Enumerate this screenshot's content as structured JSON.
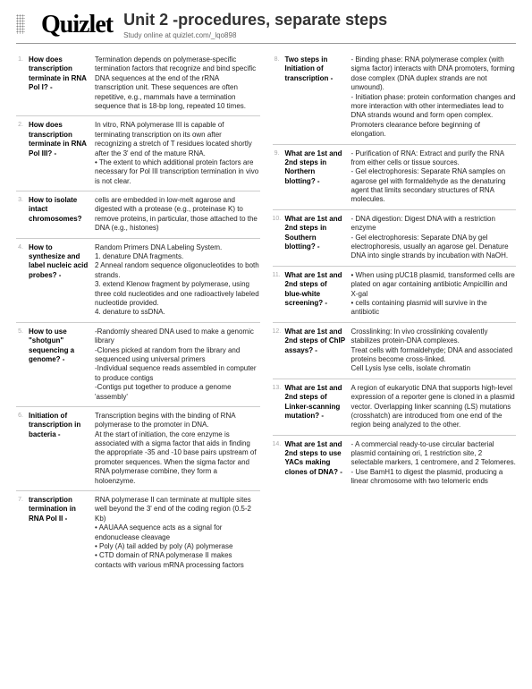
{
  "logo": "Quizlet",
  "title": "Unit 2 -procedures, separate steps",
  "subtitle": "Study online at quizlet.com/_lqo898",
  "left": [
    {
      "n": "1.",
      "term": "How does transcription terminate in RNA Pol I?\n-",
      "def": "Termination depends on polymerase-specific termination factors that recognize and bind specific DNA sequences at the end of the rRNA transcription unit. These sequences are often repetitive, e.g., mammals have a termination sequence that is 18-bp long, repeated 10 times."
    },
    {
      "n": "2.",
      "term": "How does transcription terminate in RNA Pol III?\n-",
      "def": "In vitro, RNA polymerase III is capable of terminating transcription on its own after recognizing a stretch of T residues located shortly after the 3' end of the mature RNA.\n• The extent to which additional protein factors are necessary for Pol III transcription termination in vivo is not clear."
    },
    {
      "n": "3.",
      "term": "How to isolate intact chromosomes?",
      "def": "cells are embedded in low-melt agarose and digested with a protease (e.g., proteinase K) to remove proteins, in particular, those attached to the DNA (e.g., histones)"
    },
    {
      "n": "4.",
      "term": "How to synthesize and label nucleic acid probes?\n-",
      "def": "Random Primers DNA Labeling System.\n1. denature DNA fragments.\n2 Anneal random sequence oligonucleotides to both strands.\n3. extend Klenow fragment by polymerase, using three cold nucleotides and one radioactively labeled nucleotide provided.\n4. denature to ssDNA."
    },
    {
      "n": "5.",
      "term": "How to use \"shotgun\" sequencing a genome?\n-",
      "def": "-Randomly sheared DNA used to make a genomic library\n-Clones picked at random from the library and sequenced using universal primers\n-Individual sequence reads assembled in computer to produce contigs\n-Contigs put together to produce a genome 'assembly'"
    },
    {
      "n": "6.",
      "term": "Initiation of transcription in bacteria\n-",
      "def": "Transcription begins with the binding of RNA polymerase to the promoter in DNA.\nAt the start of initiation, the core enzyme is associated with a sigma factor that aids in finding the appropriate -35 and -10 base pairs upstream of promoter sequences. When the sigma factor and RNA polymerase combine, they form a holoenzyme."
    },
    {
      "n": "7.",
      "term": "transcription termination in RNA Pol II\n-",
      "def": "RNA polymerase II can terminate at multiple sites well beyond the 3' end of the coding region (0.5-2 Kb)\n• AAUAAA sequence acts as a signal for endonuclease cleavage\n• Poly (A) tail added by poly (A) polymerase\n• CTD domain of RNA polymerase II makes contacts with various mRNA processing factors"
    }
  ],
  "right": [
    {
      "n": "8.",
      "term": "Two steps in Initiation of transcription\n-",
      "def": "- Binding phase: RNA polymerase complex (with sigma factor) interacts with DNA promoters, forming dose complex (DNA duplex strands are not unwound).\n- Initiation phase: protein conformation changes and more interaction with other intermediates lead to DNA strands wound and form open complex.\nPromoters clearance before beginning of elongation."
    },
    {
      "n": "9.",
      "term": "What are 1st and 2nd steps in Northern blotting?\n-",
      "def": "- Purification of RNA: Extract and purify the RNA from either cells or tissue sources.\n- Gel electrophoresis: Separate RNA samples on agarose gel with formaldehyde as the denaturing agent that limits secondary structures of RNA molecules."
    },
    {
      "n": "10.",
      "term": "What are 1st and 2nd steps in Southern blotting?\n-",
      "def": "- DNA digestion: Digest DNA with a restriction enzyme\n- Gel electrophoresis: Separate DNA by gel electrophoresis, usually an agarose gel. Denature DNA into single strands by incubation with NaOH."
    },
    {
      "n": "11.",
      "term": "What are 1st and 2nd steps of blue-white screening?\n-",
      "def": "• When using pUC18 plasmid, transformed cells are plated on agar containing antibiotic Ampicillin and X-gal\n• cells containing plasmid will survive in the antibiotic"
    },
    {
      "n": "12.",
      "term": "What are 1st and 2nd steps of ChIP assays?\n-",
      "def": "Crosslinking: In vivo crosslinking covalently stabilizes protein-DNA complexes.\nTreat cells with formaldehyde; DNA and associated proteins become cross-linked.\nCell Lysis lyse cells, isolate chromatin"
    },
    {
      "n": "13.",
      "term": "What are 1st and 2nd steps of Linker-scanning mutation?\n-",
      "def": "A region of eukaryotic DNA that supports high-level expression of a reporter gene is cloned in a plasmid vector. Overlapping linker scanning (LS) mutations (crosshatch) are introduced from one end of the region being analyzed to the other."
    },
    {
      "n": "14.",
      "term": "What are 1st and 2nd steps to use YACs making clones of DNA?\n-",
      "def": "- A commercial ready-to-use circular bacterial plasmid containing ori, 1 restriction site, 2 selectable markers, 1 centromere, and 2 Telomeres.\n- Use BamH1 to digest the plasmid, producing a linear chromosome with two telomeric ends"
    }
  ]
}
